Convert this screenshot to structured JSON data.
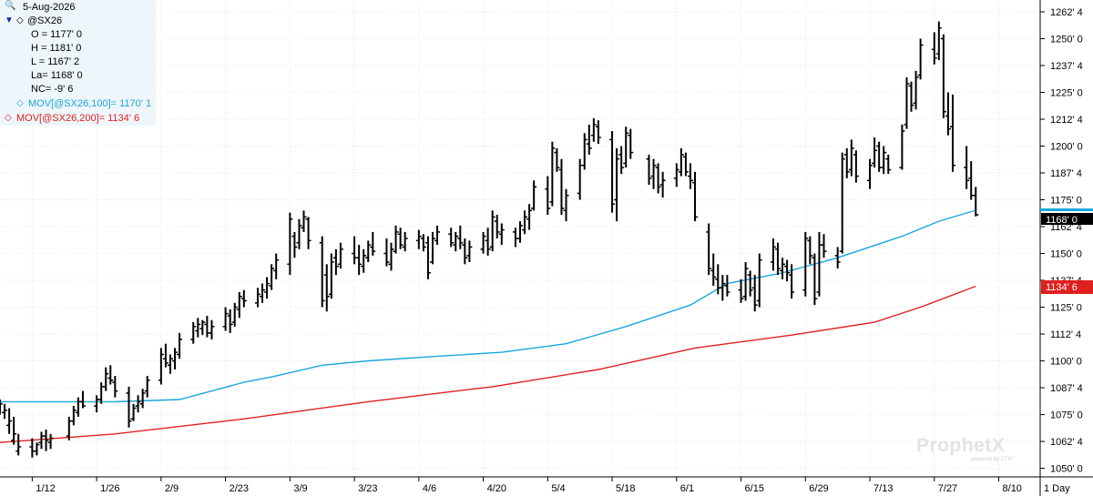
{
  "header": {
    "date": "5-Aug-2026",
    "symbol": "@SX26",
    "open": "O = 1177' 0",
    "high": "H = 1181' 0",
    "low": "L = 1167' 2",
    "last": "La= 1168' 0",
    "net_change": "NC= -9' 6",
    "ma100_label": "MOV[@SX26,100]= 1170' 1",
    "ma200_label": "MOV[@SX26,200]= 1134' 6"
  },
  "price_axis": {
    "labels": [
      "1262' 4",
      "1250' 0",
      "1237' 4",
      "1225' 0",
      "1212' 4",
      "1200' 0",
      "1187' 4",
      "1175' 0",
      "1162' 4",
      "1150' 0",
      "1137' 4",
      "1125' 0",
      "1112' 4",
      "1100' 0",
      "1087' 4",
      "1075' 0",
      "1062' 4",
      "1050' 0"
    ],
    "last_tag": "1168' 0",
    "ma200_tag": "1134' 6"
  },
  "date_axis": {
    "labels": [
      "1/12",
      "1/26",
      "2/9",
      "2/23",
      "3/9",
      "3/23",
      "4/6",
      "4/20",
      "5/4",
      "5/18",
      "6/1",
      "6/15",
      "6/29",
      "7/13",
      "7/27",
      "8/10"
    ],
    "period": "1 Day"
  },
  "watermark": {
    "brand": "ProphetX",
    "sub": "powered by DTN"
  },
  "colors": {
    "bars": "#000000",
    "ma100": "#1aa7dc",
    "ma200": "#e02020",
    "last_tag": "#000000",
    "ma200_tag": "#e02020",
    "ma100_marker": "#1aa7dc",
    "panel_bg": "#eef6fb"
  },
  "chart_data": {
    "type": "ohlc",
    "ylim": [
      1046,
      1268
    ],
    "x_start_date": "2026-01-05",
    "x_end_date": "2026-08-19",
    "bars": [
      [
        "2026-01-05",
        1082,
        1075,
        1078,
        1080
      ],
      [
        "2026-01-06",
        1080,
        1073,
        1076,
        1077
      ],
      [
        "2026-01-07",
        1078,
        1066,
        1070,
        1072
      ],
      [
        "2026-01-08",
        1074,
        1061,
        1063,
        1066
      ],
      [
        "2026-01-09",
        1066,
        1056,
        1058,
        1060
      ],
      [
        "2026-01-12",
        1064,
        1055,
        1060,
        1058
      ],
      [
        "2026-01-13",
        1062,
        1056,
        1058,
        1061
      ],
      [
        "2026-01-14",
        1067,
        1059,
        1062,
        1065
      ],
      [
        "2026-01-15",
        1068,
        1058,
        1065,
        1063
      ],
      [
        "2026-01-16",
        1066,
        1059,
        1062,
        1064
      ],
      [
        "2026-01-20",
        1074,
        1063,
        1065,
        1072
      ],
      [
        "2026-01-21",
        1079,
        1070,
        1072,
        1077
      ],
      [
        "2026-01-22",
        1083,
        1074,
        1076,
        1081
      ],
      [
        "2026-01-23",
        1086,
        1078,
        1081,
        1079
      ],
      [
        "2026-01-26",
        1084,
        1076,
        1079,
        1082
      ],
      [
        "2026-01-27",
        1090,
        1080,
        1082,
        1088
      ],
      [
        "2026-01-28",
        1097,
        1086,
        1088,
        1094
      ],
      [
        "2026-01-29",
        1098,
        1089,
        1092,
        1091
      ],
      [
        "2026-01-30",
        1093,
        1083,
        1090,
        1086
      ],
      [
        "2026-02-02",
        1088,
        1069,
        1085,
        1072
      ],
      [
        "2026-02-03",
        1080,
        1072,
        1073,
        1078
      ],
      [
        "2026-02-04",
        1084,
        1076,
        1079,
        1081
      ],
      [
        "2026-02-05",
        1087,
        1078,
        1080,
        1085
      ],
      [
        "2026-02-06",
        1093,
        1083,
        1086,
        1091
      ],
      [
        "2026-02-09",
        1106,
        1089,
        1091,
        1103
      ],
      [
        "2026-02-10",
        1108,
        1097,
        1101,
        1099
      ],
      [
        "2026-02-11",
        1103,
        1094,
        1098,
        1101
      ],
      [
        "2026-02-12",
        1106,
        1096,
        1100,
        1104
      ],
      [
        "2026-02-13",
        1113,
        1101,
        1103,
        1110
      ],
      [
        "2026-02-16",
        1118,
        1108,
        1110,
        1116
      ],
      [
        "2026-02-17",
        1120,
        1111,
        1114,
        1117
      ],
      [
        "2026-02-18",
        1119,
        1112,
        1115,
        1118
      ],
      [
        "2026-02-19",
        1121,
        1111,
        1117,
        1113
      ],
      [
        "2026-02-20",
        1119,
        1110,
        1113,
        1116
      ],
      [
        "2026-02-23",
        1125,
        1114,
        1116,
        1122
      ],
      [
        "2026-02-24",
        1124,
        1113,
        1121,
        1117
      ],
      [
        "2026-02-25",
        1127,
        1116,
        1118,
        1125
      ],
      [
        "2026-02-26",
        1132,
        1120,
        1124,
        1130
      ],
      [
        "2026-02-27",
        1133,
        1125,
        1129,
        1128
      ],
      [
        "2026-03-02",
        1134,
        1125,
        1127,
        1131
      ],
      [
        "2026-03-03",
        1136,
        1127,
        1130,
        1133
      ],
      [
        "2026-03-04",
        1139,
        1129,
        1132,
        1136
      ],
      [
        "2026-03-05",
        1145,
        1133,
        1135,
        1143
      ],
      [
        "2026-03-06",
        1150,
        1138,
        1142,
        1147
      ],
      [
        "2026-03-09",
        1169,
        1140,
        1145,
        1166
      ],
      [
        "2026-03-10",
        1160,
        1148,
        1158,
        1153
      ],
      [
        "2026-03-11",
        1166,
        1152,
        1155,
        1163
      ],
      [
        "2026-03-12",
        1170,
        1160,
        1162,
        1167
      ],
      [
        "2026-03-13",
        1167,
        1152,
        1166,
        1156
      ],
      [
        "2026-03-16",
        1158,
        1125,
        1155,
        1128
      ],
      [
        "2026-03-17",
        1145,
        1123,
        1140,
        1130
      ],
      [
        "2026-03-18",
        1150,
        1129,
        1131,
        1146
      ],
      [
        "2026-03-19",
        1152,
        1140,
        1148,
        1144
      ],
      [
        "2026-03-20",
        1155,
        1143,
        1145,
        1152
      ],
      [
        "2026-03-23",
        1158,
        1145,
        1150,
        1148
      ],
      [
        "2026-03-24",
        1154,
        1140,
        1148,
        1145
      ],
      [
        "2026-03-25",
        1152,
        1141,
        1144,
        1149
      ],
      [
        "2026-03-26",
        1156,
        1146,
        1148,
        1154
      ],
      [
        "2026-03-27",
        1160,
        1149,
        1153,
        1151
      ],
      [
        "2026-03-30",
        1157,
        1144,
        1150,
        1146
      ],
      [
        "2026-03-31",
        1155,
        1142,
        1145,
        1152
      ],
      [
        "2026-04-01",
        1163,
        1150,
        1151,
        1160
      ],
      [
        "2026-04-02",
        1162,
        1152,
        1159,
        1154
      ],
      [
        "2026-04-03",
        1160,
        1151,
        1153,
        1157
      ],
      [
        "2026-04-06",
        1161,
        1152,
        1156,
        1158
      ],
      [
        "2026-04-07",
        1159,
        1151,
        1157,
        1153
      ],
      [
        "2026-04-08",
        1158,
        1138,
        1155,
        1141
      ],
      [
        "2026-04-09",
        1160,
        1145,
        1146,
        1157
      ],
      [
        "2026-04-10",
        1163,
        1154,
        1156,
        1160
      ],
      [
        "2026-04-13",
        1162,
        1153,
        1159,
        1155
      ],
      [
        "2026-04-14",
        1160,
        1151,
        1154,
        1158
      ],
      [
        "2026-04-15",
        1163,
        1152,
        1157,
        1155
      ],
      [
        "2026-04-16",
        1157,
        1145,
        1154,
        1148
      ],
      [
        "2026-04-17",
        1156,
        1146,
        1149,
        1153
      ],
      [
        "2026-04-20",
        1160,
        1150,
        1152,
        1158
      ],
      [
        "2026-04-21",
        1162,
        1149,
        1156,
        1152
      ],
      [
        "2026-04-22",
        1170,
        1151,
        1153,
        1167
      ],
      [
        "2026-04-23",
        1168,
        1157,
        1165,
        1160
      ],
      [
        "2026-04-24",
        1164,
        1154,
        1159,
        1161
      ],
      [
        "2026-04-27",
        1162,
        1153,
        1160,
        1157
      ],
      [
        "2026-04-28",
        1165,
        1155,
        1157,
        1163
      ],
      [
        "2026-04-29",
        1170,
        1159,
        1161,
        1167
      ],
      [
        "2026-04-30",
        1173,
        1161,
        1166,
        1170
      ],
      [
        "2026-05-01",
        1184,
        1170,
        1171,
        1181
      ],
      [
        "2026-05-04",
        1186,
        1168,
        1180,
        1171
      ],
      [
        "2026-05-05",
        1202,
        1172,
        1174,
        1199
      ],
      [
        "2026-05-06",
        1199,
        1188,
        1197,
        1190
      ],
      [
        "2026-05-07",
        1194,
        1168,
        1189,
        1171
      ],
      [
        "2026-05-08",
        1180,
        1165,
        1170,
        1177
      ],
      [
        "2026-05-11",
        1194,
        1175,
        1178,
        1191
      ],
      [
        "2026-05-12",
        1206,
        1189,
        1191,
        1203
      ],
      [
        "2026-05-13",
        1210,
        1196,
        1201,
        1199
      ],
      [
        "2026-05-14",
        1213,
        1202,
        1205,
        1210
      ],
      [
        "2026-05-15",
        1212,
        1201,
        1209,
        1204
      ],
      [
        "2026-05-18",
        1207,
        1169,
        1203,
        1173
      ],
      [
        "2026-05-19",
        1199,
        1165,
        1175,
        1194
      ],
      [
        "2026-05-20",
        1200,
        1187,
        1196,
        1190
      ],
      [
        "2026-05-21",
        1209,
        1190,
        1192,
        1206
      ],
      [
        "2026-05-22",
        1208,
        1194,
        1205,
        1197
      ],
      [
        "2026-05-26",
        1196,
        1182,
        1194,
        1185
      ],
      [
        "2026-05-27",
        1194,
        1180,
        1186,
        1191
      ],
      [
        "2026-05-28",
        1192,
        1178,
        1190,
        1181
      ],
      [
        "2026-05-29",
        1188,
        1176,
        1182,
        1184
      ],
      [
        "2026-06-01",
        1192,
        1181,
        1185,
        1189
      ],
      [
        "2026-06-02",
        1199,
        1186,
        1188,
        1196
      ],
      [
        "2026-06-03",
        1197,
        1186,
        1195,
        1188
      ],
      [
        "2026-06-04",
        1192,
        1180,
        1186,
        1184
      ],
      [
        "2026-06-05",
        1188,
        1165,
        1183,
        1167
      ],
      [
        "2026-06-08",
        1164,
        1140,
        1160,
        1143
      ],
      [
        "2026-06-09",
        1150,
        1135,
        1142,
        1139
      ],
      [
        "2026-06-10",
        1145,
        1131,
        1138,
        1134
      ],
      [
        "2026-06-11",
        1140,
        1128,
        1134,
        1136
      ],
      [
        "2026-06-12",
        1140,
        1130,
        1135,
        1132
      ],
      [
        "2026-06-15",
        1138,
        1127,
        1133,
        1129
      ],
      [
        "2026-06-16",
        1146,
        1128,
        1130,
        1143
      ],
      [
        "2026-06-17",
        1142,
        1130,
        1140,
        1133
      ],
      [
        "2026-06-18",
        1140,
        1123,
        1134,
        1126
      ],
      [
        "2026-06-19",
        1150,
        1125,
        1128,
        1147
      ],
      [
        "2026-06-22",
        1157,
        1142,
        1146,
        1153
      ],
      [
        "2026-06-23",
        1155,
        1140,
        1152,
        1143
      ],
      [
        "2026-06-24",
        1148,
        1138,
        1142,
        1145
      ],
      [
        "2026-06-25",
        1147,
        1137,
        1144,
        1141
      ],
      [
        "2026-06-26",
        1145,
        1129,
        1140,
        1132
      ],
      [
        "2026-06-29",
        1160,
        1130,
        1133,
        1157
      ],
      [
        "2026-06-30",
        1158,
        1145,
        1156,
        1149
      ],
      [
        "2026-07-01",
        1150,
        1126,
        1148,
        1129
      ],
      [
        "2026-07-02",
        1160,
        1130,
        1132,
        1154
      ],
      [
        "2026-07-03",
        1159,
        1148,
        1154,
        1151
      ],
      [
        "2026-07-06",
        1153,
        1143,
        1149,
        1146
      ],
      [
        "2026-07-07",
        1197,
        1150,
        1151,
        1194
      ],
      [
        "2026-07-08",
        1199,
        1185,
        1196,
        1188
      ],
      [
        "2026-07-09",
        1203,
        1186,
        1189,
        1199
      ],
      [
        "2026-07-10",
        1198,
        1183,
        1196,
        1186
      ],
      [
        "2026-07-13",
        1194,
        1180,
        1184,
        1191
      ],
      [
        "2026-07-14",
        1204,
        1190,
        1192,
        1198
      ],
      [
        "2026-07-15",
        1202,
        1188,
        1200,
        1190
      ],
      [
        "2026-07-16",
        1200,
        1187,
        1190,
        1197
      ],
      [
        "2026-07-17",
        1196,
        1187,
        1194,
        1189
      ],
      [
        "2026-07-20",
        1210,
        1189,
        1190,
        1207
      ],
      [
        "2026-07-21",
        1232,
        1208,
        1210,
        1229
      ],
      [
        "2026-07-22",
        1230,
        1216,
        1228,
        1219
      ],
      [
        "2026-07-23",
        1235,
        1217,
        1220,
        1232
      ],
      [
        "2026-07-24",
        1250,
        1231,
        1233,
        1247
      ],
      [
        "2026-07-27",
        1253,
        1238,
        1245,
        1241
      ],
      [
        "2026-07-28",
        1258,
        1240,
        1243,
        1255
      ],
      [
        "2026-07-29",
        1252,
        1213,
        1250,
        1216
      ],
      [
        "2026-07-30",
        1225,
        1205,
        1214,
        1208
      ],
      [
        "2026-07-31",
        1224,
        1188,
        1209,
        1191
      ],
      [
        "2026-08-03",
        1200,
        1180,
        1190,
        1184
      ],
      [
        "2026-08-04",
        1193,
        1175,
        1185,
        1177
      ],
      [
        "2026-08-05",
        1181,
        1167.25,
        1177,
        1168
      ]
    ],
    "ma100": [
      [
        "2026-01-05",
        1081
      ],
      [
        "2026-01-30",
        1081
      ],
      [
        "2026-02-13",
        1082
      ],
      [
        "2026-02-27",
        1090
      ],
      [
        "2026-03-06",
        1093
      ],
      [
        "2026-03-16",
        1098
      ],
      [
        "2026-03-26",
        1100
      ],
      [
        "2026-04-09",
        1102
      ],
      [
        "2026-04-24",
        1104
      ],
      [
        "2026-05-08",
        1108
      ],
      [
        "2026-05-21",
        1116
      ],
      [
        "2026-06-04",
        1126
      ],
      [
        "2026-06-12",
        1136
      ],
      [
        "2026-06-24",
        1141
      ],
      [
        "2026-07-06",
        1148
      ],
      [
        "2026-07-20",
        1158
      ],
      [
        "2026-07-28",
        1165
      ],
      [
        "2026-08-05",
        1170.125
      ]
    ],
    "ma200": [
      [
        "2026-01-05",
        1062
      ],
      [
        "2026-01-30",
        1066
      ],
      [
        "2026-02-27",
        1073
      ],
      [
        "2026-03-26",
        1081
      ],
      [
        "2026-04-22",
        1088
      ],
      [
        "2026-05-15",
        1096
      ],
      [
        "2026-06-05",
        1106
      ],
      [
        "2026-06-26",
        1112
      ],
      [
        "2026-07-14",
        1118
      ],
      [
        "2026-07-24",
        1125
      ],
      [
        "2026-08-05",
        1134.75
      ]
    ]
  }
}
